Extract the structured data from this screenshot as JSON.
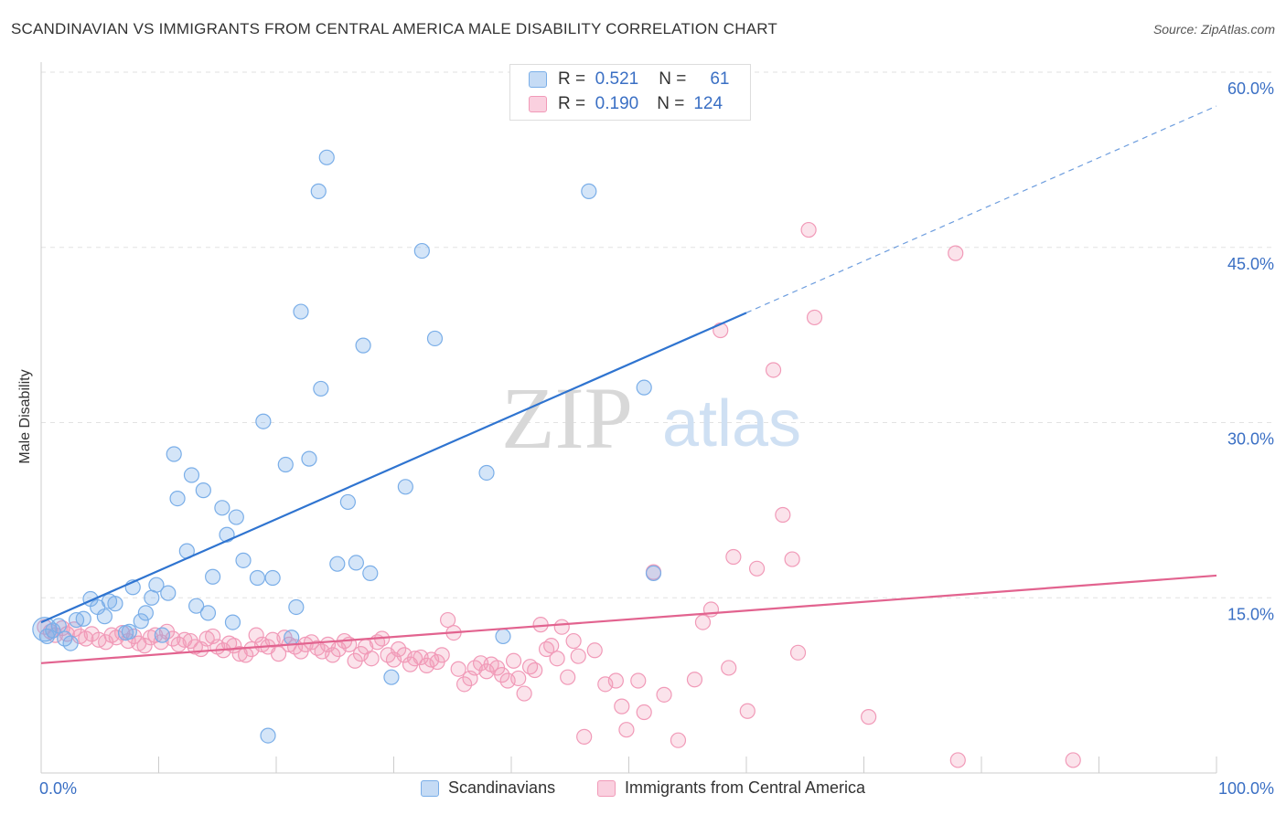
{
  "title": "SCANDINAVIAN VS IMMIGRANTS FROM CENTRAL AMERICA MALE DISABILITY CORRELATION CHART",
  "source": "Source: ZipAtlas.com",
  "colors": {
    "blue": "#7aaee8",
    "blue_line": "#2f74d0",
    "pink": "#f19ab8",
    "pink_line": "#e2638f",
    "axis_text": "#3a6fc4"
  },
  "legend_top": {
    "rows": [
      {
        "r_label": "R =",
        "r_value": "0.521",
        "n_label": "N =",
        "n_value": "61"
      },
      {
        "r_label": "R =",
        "r_value": "0.190",
        "n_label": "N =",
        "n_value": "124"
      }
    ]
  },
  "legend_bottom": [
    "Scandinavians",
    "Immigrants from Central America"
  ],
  "watermark": {
    "zip": "ZIP",
    "atlas": "atlas"
  },
  "chart_data": {
    "type": "scatter",
    "xlabel": "",
    "ylabel": "Male Disability",
    "xlim": [
      0,
      100
    ],
    "ylim": [
      0,
      60
    ],
    "x_tick_labels": [
      "0.0%",
      "100.0%"
    ],
    "y_tick_labels": [
      "15.0%",
      "30.0%",
      "45.0%",
      "60.0%"
    ],
    "y_ticks": [
      15,
      30,
      45,
      60
    ],
    "grid": true,
    "legend_position": "top-center",
    "series": [
      {
        "name": "Scandinavians",
        "trend": {
          "x0": 0,
          "y0": 12.9,
          "x1": 60,
          "y1": 39.4,
          "dashed_to_x": 100,
          "dashed_to_y": 57.1
        },
        "points": [
          [
            0.3,
            12.3
          ],
          [
            0.5,
            11.7
          ],
          [
            1.0,
            12.2
          ],
          [
            1.5,
            12.6
          ],
          [
            2.0,
            11.5
          ],
          [
            2.5,
            11.1
          ],
          [
            3.0,
            13.1
          ],
          [
            3.6,
            13.2
          ],
          [
            4.2,
            14.9
          ],
          [
            4.8,
            14.2
          ],
          [
            5.4,
            13.4
          ],
          [
            5.8,
            14.7
          ],
          [
            6.3,
            14.5
          ],
          [
            7.2,
            12.0
          ],
          [
            7.5,
            12.1
          ],
          [
            7.8,
            15.9
          ],
          [
            8.5,
            13.0
          ],
          [
            8.9,
            13.7
          ],
          [
            9.4,
            15.0
          ],
          [
            9.8,
            16.1
          ],
          [
            10.3,
            11.8
          ],
          [
            10.8,
            15.4
          ],
          [
            11.3,
            27.3
          ],
          [
            11.6,
            23.5
          ],
          [
            12.4,
            19.0
          ],
          [
            12.8,
            25.5
          ],
          [
            13.2,
            14.3
          ],
          [
            13.8,
            24.2
          ],
          [
            14.2,
            13.7
          ],
          [
            14.6,
            16.8
          ],
          [
            15.4,
            22.7
          ],
          [
            15.8,
            20.4
          ],
          [
            16.6,
            21.9
          ],
          [
            17.2,
            18.2
          ],
          [
            16.3,
            12.9
          ],
          [
            18.4,
            16.7
          ],
          [
            18.9,
            30.1
          ],
          [
            19.3,
            3.2
          ],
          [
            19.7,
            16.7
          ],
          [
            20.8,
            26.4
          ],
          [
            21.3,
            11.6
          ],
          [
            21.7,
            14.2
          ],
          [
            22.1,
            39.5
          ],
          [
            22.8,
            26.9
          ],
          [
            23.6,
            49.8
          ],
          [
            23.8,
            32.9
          ],
          [
            24.3,
            52.7
          ],
          [
            25.2,
            17.9
          ],
          [
            26.1,
            23.2
          ],
          [
            26.8,
            18.0
          ],
          [
            27.4,
            36.6
          ],
          [
            28.0,
            17.1
          ],
          [
            29.8,
            8.2
          ],
          [
            31.0,
            24.5
          ],
          [
            32.4,
            44.7
          ],
          [
            33.5,
            37.2
          ],
          [
            37.9,
            25.7
          ],
          [
            39.3,
            11.7
          ],
          [
            46.6,
            49.8
          ],
          [
            51.3,
            33.0
          ],
          [
            52.1,
            17.1
          ]
        ]
      },
      {
        "name": "Immigrants from Central America",
        "trend": {
          "x0": 0,
          "y0": 9.4,
          "x1": 100,
          "y1": 16.9
        },
        "points": [
          [
            0.3,
            12.5
          ],
          [
            0.8,
            12.1
          ],
          [
            1.2,
            11.8
          ],
          [
            1.8,
            12.4
          ],
          [
            2.2,
            11.9
          ],
          [
            2.8,
            12.3
          ],
          [
            3.3,
            11.7
          ],
          [
            3.8,
            11.5
          ],
          [
            4.3,
            11.9
          ],
          [
            4.9,
            11.4
          ],
          [
            5.5,
            11.2
          ],
          [
            6.0,
            11.8
          ],
          [
            6.4,
            11.6
          ],
          [
            6.9,
            12.0
          ],
          [
            7.4,
            11.3
          ],
          [
            7.9,
            11.7
          ],
          [
            8.3,
            11.1
          ],
          [
            8.8,
            10.9
          ],
          [
            9.3,
            11.6
          ],
          [
            9.7,
            11.8
          ],
          [
            10.2,
            11.2
          ],
          [
            10.7,
            12.1
          ],
          [
            11.2,
            11.5
          ],
          [
            11.7,
            11.0
          ],
          [
            12.2,
            11.4
          ],
          [
            12.7,
            11.3
          ],
          [
            13.1,
            10.8
          ],
          [
            13.6,
            10.6
          ],
          [
            14.1,
            11.5
          ],
          [
            14.6,
            11.7
          ],
          [
            15.0,
            10.8
          ],
          [
            15.5,
            10.5
          ],
          [
            16.0,
            11.1
          ],
          [
            16.4,
            10.9
          ],
          [
            16.9,
            10.2
          ],
          [
            17.4,
            10.1
          ],
          [
            17.9,
            10.6
          ],
          [
            18.3,
            11.8
          ],
          [
            18.8,
            11.0
          ],
          [
            19.3,
            10.8
          ],
          [
            19.7,
            11.4
          ],
          [
            20.2,
            10.2
          ],
          [
            20.7,
            11.6
          ],
          [
            21.1,
            11.0
          ],
          [
            21.6,
            10.8
          ],
          [
            22.1,
            10.4
          ],
          [
            22.5,
            11.0
          ],
          [
            23.0,
            11.2
          ],
          [
            23.5,
            10.7
          ],
          [
            23.9,
            10.4
          ],
          [
            24.4,
            11.0
          ],
          [
            24.8,
            10.1
          ],
          [
            25.3,
            10.6
          ],
          [
            25.8,
            11.3
          ],
          [
            26.2,
            11.0
          ],
          [
            26.7,
            9.6
          ],
          [
            27.2,
            10.2
          ],
          [
            27.6,
            10.8
          ],
          [
            28.1,
            9.8
          ],
          [
            28.6,
            11.2
          ],
          [
            29.0,
            11.5
          ],
          [
            29.5,
            10.1
          ],
          [
            30.0,
            9.7
          ],
          [
            30.4,
            10.6
          ],
          [
            30.9,
            10.1
          ],
          [
            31.4,
            9.3
          ],
          [
            31.8,
            9.8
          ],
          [
            32.3,
            9.9
          ],
          [
            32.8,
            9.2
          ],
          [
            33.2,
            9.7
          ],
          [
            33.7,
            9.5
          ],
          [
            34.1,
            10.1
          ],
          [
            34.6,
            13.1
          ],
          [
            35.1,
            12.0
          ],
          [
            35.5,
            8.9
          ],
          [
            36.0,
            7.6
          ],
          [
            36.5,
            8.1
          ],
          [
            36.9,
            9.0
          ],
          [
            37.4,
            9.4
          ],
          [
            37.9,
            8.7
          ],
          [
            38.3,
            9.3
          ],
          [
            38.8,
            9.0
          ],
          [
            39.2,
            8.4
          ],
          [
            39.7,
            7.9
          ],
          [
            40.2,
            9.6
          ],
          [
            40.6,
            8.1
          ],
          [
            41.1,
            6.8
          ],
          [
            41.6,
            9.1
          ],
          [
            42.0,
            8.8
          ],
          [
            42.5,
            12.7
          ],
          [
            43.0,
            10.6
          ],
          [
            43.4,
            10.9
          ],
          [
            43.9,
            9.8
          ],
          [
            44.3,
            12.5
          ],
          [
            44.8,
            8.2
          ],
          [
            45.3,
            11.3
          ],
          [
            45.7,
            10.0
          ],
          [
            46.2,
            3.1
          ],
          [
            47.1,
            10.5
          ],
          [
            48.0,
            7.6
          ],
          [
            48.9,
            7.9
          ],
          [
            49.4,
            5.7
          ],
          [
            49.8,
            3.7
          ],
          [
            50.8,
            7.9
          ],
          [
            51.3,
            5.2
          ],
          [
            52.1,
            17.2
          ],
          [
            53.0,
            6.7
          ],
          [
            54.2,
            2.8
          ],
          [
            55.6,
            8.0
          ],
          [
            56.3,
            12.9
          ],
          [
            57.0,
            14.0
          ],
          [
            57.8,
            37.9
          ],
          [
            58.5,
            9.0
          ],
          [
            58.9,
            18.5
          ],
          [
            60.1,
            5.3
          ],
          [
            60.9,
            17.5
          ],
          [
            62.3,
            34.5
          ],
          [
            63.1,
            22.1
          ],
          [
            63.9,
            18.3
          ],
          [
            64.4,
            10.3
          ],
          [
            65.3,
            46.5
          ],
          [
            65.8,
            39.0
          ],
          [
            70.4,
            4.8
          ],
          [
            77.8,
            44.5
          ],
          [
            78.0,
            1.1
          ],
          [
            87.8,
            1.1
          ]
        ]
      }
    ]
  }
}
